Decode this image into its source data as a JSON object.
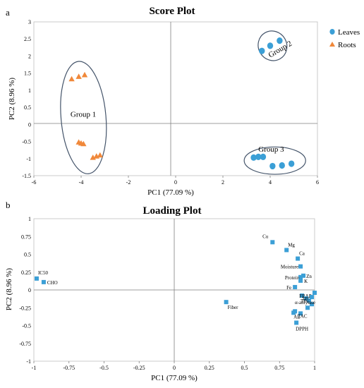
{
  "panels": [
    {
      "label": "a"
    },
    {
      "label": "b"
    }
  ],
  "colors": {
    "leaves": "#3b9fd6",
    "roots": "#f0883a",
    "loading": "#3b9fd6",
    "axis": "#7f7f7f",
    "frame": "#bfbfbf",
    "ellipse": "#44546a"
  },
  "chart_data": [
    {
      "type": "scatter",
      "title": "Score Plot",
      "xlabel": "PC1 (77.09 %)",
      "ylabel": "PC2 (8.96 %)",
      "xlim": [
        -6,
        6
      ],
      "ylim": [
        -1.5,
        3
      ],
      "xticks": [
        "-6",
        "-4",
        "-2",
        "0",
        "2",
        "4",
        "6"
      ],
      "yticks": [
        "3",
        "2.5",
        "2",
        "1.5",
        "1",
        "0.5",
        "0",
        "-0.5",
        "-1",
        "-1.5"
      ],
      "legend": "top-right",
      "series": [
        {
          "name": "Leaves",
          "marker": "circle",
          "color": "#3b9fd6",
          "points": [
            [
              3.65,
              2.15
            ],
            [
              4.0,
              2.3
            ],
            [
              4.4,
              2.45
            ],
            [
              3.3,
              -0.97
            ],
            [
              3.5,
              -0.95
            ],
            [
              3.7,
              -0.95
            ],
            [
              4.1,
              -1.22
            ],
            [
              4.5,
              -1.2
            ],
            [
              4.9,
              -1.15
            ]
          ]
        },
        {
          "name": "Roots",
          "marker": "triangle",
          "color": "#f0883a",
          "points": [
            [
              -4.4,
              1.33
            ],
            [
              -4.1,
              1.4
            ],
            [
              -3.85,
              1.45
            ],
            [
              -4.1,
              -0.52
            ],
            [
              -4.0,
              -0.55
            ],
            [
              -3.9,
              -0.57
            ],
            [
              -3.5,
              -0.97
            ],
            [
              -3.35,
              -0.93
            ],
            [
              -3.2,
              -0.9
            ]
          ]
        }
      ],
      "groups": [
        {
          "label": "Group 1",
          "center": [
            -3.9,
            0.2
          ],
          "rx": 0.95,
          "ry": 1.65,
          "label_at": [
            -4.45,
            0.22
          ]
        },
        {
          "label": "Group 2",
          "center": [
            4.1,
            2.3
          ],
          "rx": 0.6,
          "ry": 0.44,
          "label_at": [
            4.0,
            1.95
          ]
        },
        {
          "label": "Group 3",
          "center": [
            4.2,
            -1.06
          ],
          "rx": 1.3,
          "ry": 0.4,
          "label_at": [
            3.5,
            -0.8
          ]
        }
      ]
    },
    {
      "type": "scatter",
      "title": "Loading Plot",
      "xlabel": "PC1 (77.09 %)",
      "ylabel": "PC2 (8.96 %)",
      "xlim": [
        -1,
        1
      ],
      "ylim": [
        -1,
        1
      ],
      "xticks": [
        "-1",
        "-0.75",
        "-0.5",
        "-0.25",
        "0",
        "0.25",
        "0.5",
        "0.75",
        "1"
      ],
      "yticks": [
        "1",
        "0.75",
        "0.5",
        "0.25",
        "0",
        "-0.25",
        "-0.5",
        "-0.75",
        "-1"
      ],
      "points": [
        {
          "label": "Cu",
          "x": 0.7,
          "y": 0.67
        },
        {
          "label": "Mg",
          "x": 0.8,
          "y": 0.56
        },
        {
          "label": "Ca",
          "x": 0.88,
          "y": 0.44
        },
        {
          "label": "Moisture",
          "x": 0.9,
          "y": 0.33
        },
        {
          "label": "Zn",
          "x": 0.92,
          "y": 0.2
        },
        {
          "label": "Protein",
          "x": 0.9,
          "y": 0.18
        },
        {
          "label": "K",
          "x": 0.9,
          "y": 0.13
        },
        {
          "label": "Fe",
          "x": 0.86,
          "y": 0.04
        },
        {
          "label": "IC50",
          "x": -0.98,
          "y": 0.16
        },
        {
          "label": "CHO",
          "x": -0.93,
          "y": 0.11
        },
        {
          "label": "Fiber",
          "x": 0.37,
          "y": -0.17
        },
        {
          "label": "FRAP",
          "x": 0.91,
          "y": -0.08
        },
        {
          "label": "TPC",
          "x": 0.94,
          "y": -0.12
        },
        {
          "label": "TFC",
          "x": 0.96,
          "y": -0.15
        },
        {
          "label": "α-amylase",
          "x": 0.98,
          "y": -0.2
        },
        {
          "label": "AE",
          "x": 0.86,
          "y": -0.3
        },
        {
          "label": "TAC",
          "x": 0.9,
          "y": -0.33
        },
        {
          "label": "DPPH",
          "x": 0.87,
          "y": -0.46
        },
        {
          "label": "",
          "x": 1.0,
          "y": -0.04
        },
        {
          "label": "",
          "x": 0.95,
          "y": -0.25
        },
        {
          "label": "",
          "x": 0.85,
          "y": -0.32
        },
        {
          "label": "",
          "x": 0.98,
          "y": -0.1
        }
      ]
    }
  ]
}
